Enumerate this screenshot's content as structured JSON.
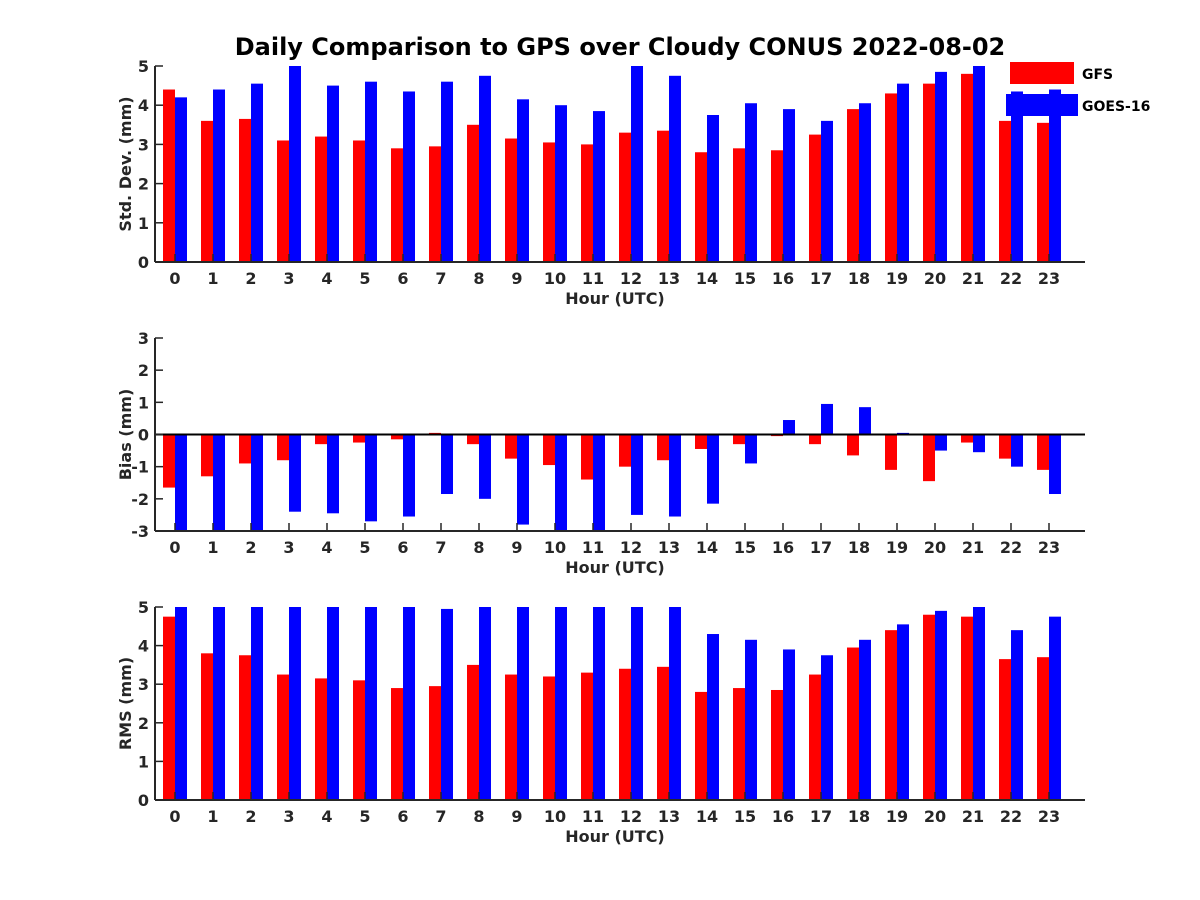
{
  "chart_data": {
    "title": "Daily Comparison to GPS over Cloudy CONUS 2022-08-02",
    "legend": {
      "placement": "top-right, outside plot",
      "entries": [
        {
          "name": "GFS",
          "color": "#ff0000"
        },
        {
          "name": "GOES-16",
          "color": "#0000ff"
        }
      ]
    },
    "panels": [
      {
        "type": "bar",
        "xlabel": "Hour (UTC)",
        "ylabel": "Std. Dev. (mm)",
        "ylim": [
          0,
          5
        ],
        "yticks": [
          0,
          1,
          2,
          3,
          4,
          5
        ],
        "categories": [
          "0",
          "1",
          "2",
          "3",
          "4",
          "5",
          "6",
          "7",
          "8",
          "9",
          "10",
          "11",
          "12",
          "13",
          "14",
          "15",
          "16",
          "17",
          "18",
          "19",
          "20",
          "21",
          "22",
          "23"
        ],
        "series": [
          {
            "name": "GFS",
            "color": "#ff0000",
            "values": [
              4.4,
              3.6,
              3.65,
              3.1,
              3.2,
              3.1,
              2.9,
              2.95,
              3.5,
              3.15,
              3.05,
              3.0,
              3.3,
              3.35,
              2.8,
              2.9,
              2.85,
              3.25,
              3.9,
              4.3,
              4.55,
              4.8,
              3.6,
              3.55
            ]
          },
          {
            "name": "GOES-16",
            "color": "#0000ff",
            "values": [
              4.2,
              4.4,
              4.55,
              5.0,
              4.5,
              4.6,
              4.35,
              4.6,
              4.75,
              4.15,
              4.0,
              3.85,
              5.0,
              4.75,
              3.75,
              4.05,
              3.9,
              3.6,
              4.05,
              4.55,
              4.85,
              5.0,
              4.35,
              4.4
            ]
          }
        ]
      },
      {
        "type": "bar",
        "xlabel": "Hour (UTC)",
        "ylabel": "Bias (mm)",
        "ylim": [
          -3,
          3
        ],
        "yticks": [
          -3,
          -2,
          -1,
          0,
          1,
          2,
          3
        ],
        "zero_line": true,
        "categories": [
          "0",
          "1",
          "2",
          "3",
          "4",
          "5",
          "6",
          "7",
          "8",
          "9",
          "10",
          "11",
          "12",
          "13",
          "14",
          "15",
          "16",
          "17",
          "18",
          "19",
          "20",
          "21",
          "22",
          "23"
        ],
        "series": [
          {
            "name": "GFS",
            "color": "#ff0000",
            "values": [
              -1.65,
              -1.3,
              -0.9,
              -0.8,
              -0.3,
              -0.25,
              -0.15,
              0.05,
              -0.3,
              -0.75,
              -0.95,
              -1.4,
              -1.0,
              -0.8,
              -0.45,
              -0.3,
              -0.05,
              -0.3,
              -0.65,
              -1.1,
              -1.45,
              -0.25,
              -0.75,
              -1.1
            ]
          },
          {
            "name": "GOES-16",
            "color": "#0000ff",
            "values": [
              -3.0,
              -3.0,
              -3.0,
              -2.4,
              -2.45,
              -2.7,
              -2.55,
              -1.85,
              -2.0,
              -2.8,
              -3.0,
              -3.0,
              -2.5,
              -2.55,
              -2.15,
              -0.9,
              0.45,
              0.95,
              0.85,
              0.05,
              -0.5,
              -0.55,
              -1.0,
              -1.85
            ]
          }
        ]
      },
      {
        "type": "bar",
        "xlabel": "Hour (UTC)",
        "ylabel": "RMS (mm)",
        "ylim": [
          0,
          5
        ],
        "yticks": [
          0,
          1,
          2,
          3,
          4,
          5
        ],
        "categories": [
          "0",
          "1",
          "2",
          "3",
          "4",
          "5",
          "6",
          "7",
          "8",
          "9",
          "10",
          "11",
          "12",
          "13",
          "14",
          "15",
          "16",
          "17",
          "18",
          "19",
          "20",
          "21",
          "22",
          "23"
        ],
        "series": [
          {
            "name": "GFS",
            "color": "#ff0000",
            "values": [
              4.75,
              3.8,
              3.75,
              3.25,
              3.15,
              3.1,
              2.9,
              2.95,
              3.5,
              3.25,
              3.2,
              3.3,
              3.4,
              3.45,
              2.8,
              2.9,
              2.85,
              3.25,
              3.95,
              4.4,
              4.8,
              4.75,
              3.65,
              3.7
            ]
          },
          {
            "name": "GOES-16",
            "color": "#0000ff",
            "values": [
              5.0,
              5.0,
              5.0,
              5.0,
              5.0,
              5.0,
              5.0,
              4.95,
              5.0,
              5.0,
              5.0,
              5.0,
              5.0,
              5.0,
              4.3,
              4.15,
              3.9,
              3.75,
              4.15,
              4.55,
              4.9,
              5.0,
              4.4,
              4.75
            ]
          }
        ]
      }
    ]
  }
}
